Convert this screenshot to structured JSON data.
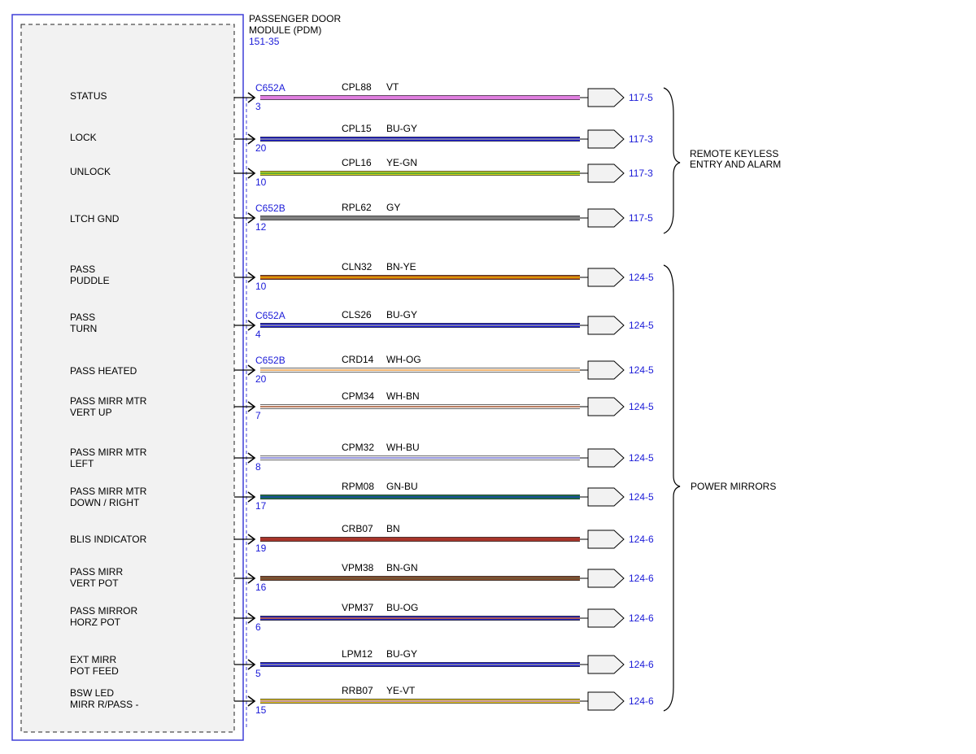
{
  "module": {
    "name_line1": "PASSENGER DOOR",
    "name_line2": "MODULE (PDM)",
    "ref": "151-35",
    "border_color": "#3f3fd8",
    "fill_color": "#f2f2f2"
  },
  "groups": [
    {
      "line1": "REMOTE KEYLESS",
      "line2": "ENTRY AND ALARM"
    },
    {
      "line1": "POWER MIRRORS",
      "line2": ""
    }
  ],
  "circuits": [
    {
      "label1": "STATUS",
      "label2": "",
      "connector": "C652A",
      "pin": "3",
      "circuit": "CPL88",
      "color_code": "VT",
      "colors": [
        "#e07ee0",
        "#e07ee0"
      ],
      "ref": "117-5"
    },
    {
      "label1": "LOCK",
      "label2": "",
      "connector": "",
      "pin": "20",
      "circuit": "CPL15",
      "color_code": "BU-GY",
      "colors": [
        "#1a1ad8",
        "#9a9a9a"
      ],
      "ref": "117-3"
    },
    {
      "label1": "UNLOCK",
      "label2": "",
      "connector": "",
      "pin": "10",
      "circuit": "CPL16",
      "color_code": "YE-GN",
      "colors": [
        "#d8d820",
        "#3a9a3a"
      ],
      "ref": "117-3"
    },
    {
      "label1": "LTCH GND",
      "label2": "",
      "connector": "C652B",
      "pin": "12",
      "circuit": "RPL62",
      "color_code": "GY",
      "colors": [
        "#808080",
        "#808080"
      ],
      "ref": "117-5"
    },
    {
      "label1": "PASS",
      "label2": "PUDDLE",
      "connector": "",
      "pin": "10",
      "circuit": "CLN32",
      "color_code": "BN-YE",
      "colors": [
        "#b8521a",
        "#e0b000"
      ],
      "ref": "124-5"
    },
    {
      "label1": "PASS",
      "label2": "TURN",
      "connector": "C652A",
      "pin": "4",
      "circuit": "CLS26",
      "color_code": "BU-GY",
      "colors": [
        "#1a1ad8",
        "#9a9a9a"
      ],
      "ref": "124-5"
    },
    {
      "label1": "PASS HEATED",
      "label2": "",
      "connector": "C652B",
      "pin": "20",
      "circuit": "CRD14",
      "color_code": "WH-OG",
      "colors": [
        "#ffffff",
        "#e89a40"
      ],
      "ref": "124-5"
    },
    {
      "label1": "PASS MIRR MTR",
      "label2": "VERT UP",
      "connector": "",
      "pin": "7",
      "circuit": "CPM34",
      "color_code": "WH-BN",
      "colors": [
        "#ffffff",
        "#a0522d"
      ],
      "ref": "124-5"
    },
    {
      "label1": "PASS MIRR MTR",
      "label2": "LEFT",
      "connector": "",
      "pin": "8",
      "circuit": "CPM32",
      "color_code": "WH-BU",
      "colors": [
        "#ffffff",
        "#7070d0"
      ],
      "ref": "124-5"
    },
    {
      "label1": "PASS MIRR MTR",
      "label2": "DOWN / RIGHT",
      "connector": "",
      "pin": "17",
      "circuit": "RPM08",
      "color_code": "GN-BU",
      "colors": [
        "#1a7a4a",
        "#1a3ab0"
      ],
      "ref": "124-5"
    },
    {
      "label1": "BLIS INDICATOR",
      "label2": "",
      "connector": "",
      "pin": "19",
      "circuit": "CRB07",
      "color_code": "BN",
      "colors": [
        "#a8352a",
        "#a8352a"
      ],
      "ref": "124-6"
    },
    {
      "label1": "PASS MIRR",
      "label2": "VERT POT",
      "connector": "",
      "pin": "16",
      "circuit": "VPM38",
      "color_code": "BN-GN",
      "colors": [
        "#8a4a2a",
        "#6a5a3a"
      ],
      "ref": "124-6"
    },
    {
      "label1": "PASS MIRROR",
      "label2": "HORZ POT",
      "connector": "",
      "pin": "6",
      "circuit": "VPM37",
      "color_code": "BU-OG",
      "colors": [
        "#2020c0",
        "#d87030"
      ],
      "ref": "124-6"
    },
    {
      "label1": "EXT MIRR",
      "label2": "POT FEED",
      "connector": "",
      "pin": "5",
      "circuit": "LPM12",
      "color_code": "BU-GY",
      "colors": [
        "#1a1ad8",
        "#9a9a9a"
      ],
      "ref": "124-6"
    },
    {
      "label1": "BSW LED",
      "label2": "MIRR R/PASS -",
      "connector": "",
      "pin": "15",
      "circuit": "RRB07",
      "color_code": "YE-VT",
      "colors": [
        "#e8c820",
        "#b080d0"
      ],
      "ref": "124-6"
    }
  ]
}
